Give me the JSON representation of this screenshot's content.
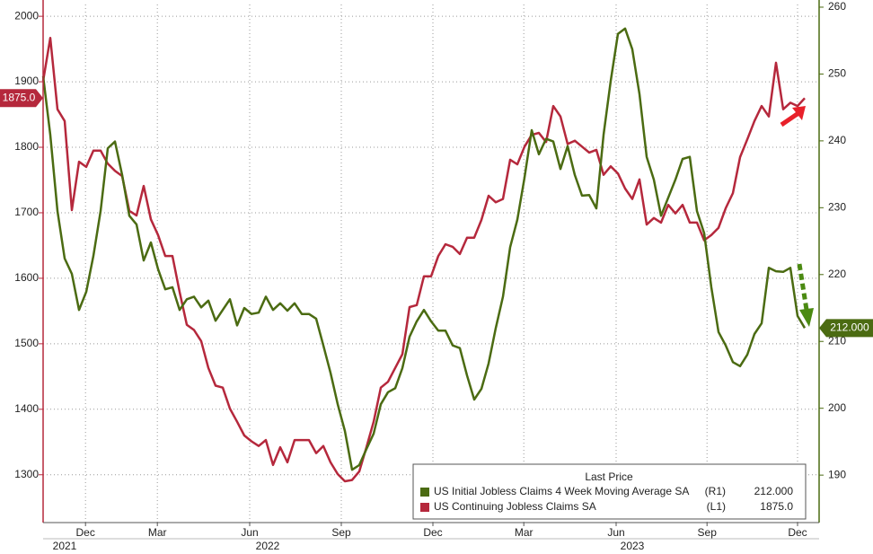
{
  "chart_data": {
    "type": "line",
    "x": [
      0,
      1,
      2,
      3,
      4,
      5,
      6,
      7,
      8,
      9,
      10,
      11,
      12,
      13,
      14,
      15,
      16,
      17,
      18,
      19,
      20,
      21,
      22,
      23,
      24,
      25,
      26,
      27,
      28,
      29,
      30,
      31,
      32,
      33,
      34,
      35,
      36,
      37,
      38,
      39,
      40,
      41,
      42,
      43,
      44,
      45,
      46,
      47,
      48,
      49,
      50,
      51,
      52,
      53,
      54,
      55,
      56,
      57,
      58,
      59,
      60,
      61,
      62,
      63,
      64,
      65,
      66,
      67,
      68,
      69,
      70,
      71,
      72,
      73,
      74,
      75,
      76,
      77,
      78,
      79,
      80,
      81,
      82,
      83,
      84,
      85,
      86,
      87,
      88,
      89,
      90,
      91,
      92,
      93,
      94,
      95,
      96,
      97,
      98,
      99,
      100,
      101,
      102,
      103,
      104,
      105,
      106
    ],
    "xlim": [
      0,
      108
    ],
    "xticks": [
      {
        "value": 5.9,
        "label": "Dec"
      },
      {
        "value": 15.9,
        "label": "Mar"
      },
      {
        "value": 28.75,
        "label": "Jun"
      },
      {
        "value": 41.5,
        "label": "Sep"
      },
      {
        "value": 54.25,
        "label": "Dec"
      },
      {
        "value": 66.9,
        "label": "Mar"
      },
      {
        "value": 79.75,
        "label": "Jun"
      },
      {
        "value": 92.4,
        "label": "Sep"
      },
      {
        "value": 105,
        "label": "Dec"
      }
    ],
    "year_ticks": [
      {
        "value": 3,
        "label": "2021"
      },
      {
        "value": 31.25,
        "label": "2022"
      },
      {
        "value": 82,
        "label": "2023"
      }
    ],
    "ylim": [
      1227,
      2018
    ],
    "yticks": [
      1300,
      1400,
      1500,
      1600,
      1700,
      1800,
      1900,
      2000
    ],
    "y2lim": [
      182.9,
      260.4
    ],
    "y2ticks": [
      190,
      200,
      210,
      220,
      230,
      240,
      250,
      260
    ],
    "grid": true,
    "legend_title": "Last Price",
    "series": [
      {
        "name": "US Initial Jobless Claims 4 Week Moving Average SA",
        "axis": "y2",
        "axis_label": "(R1)",
        "last_label": "212.000",
        "color": "#4b6b12",
        "values": [
          249.7,
          240.9,
          229.5,
          222.4,
          220.1,
          214.7,
          217.4,
          222.8,
          229.5,
          238.9,
          239.9,
          234.9,
          228.8,
          227.5,
          222.1,
          224.8,
          220.8,
          217.8,
          218.1,
          214.7,
          216.3,
          216.7,
          215.1,
          216.1,
          213.1,
          214.7,
          216.3,
          212.4,
          215.0,
          214.1,
          214.3,
          216.7,
          214.7,
          215.7,
          214.6,
          215.7,
          214.1,
          214.1,
          213.4,
          209.4,
          205.3,
          200.6,
          196.6,
          190.8,
          191.5,
          193.9,
          196.2,
          200.6,
          202.4,
          203.0,
          206.0,
          210.7,
          213.0,
          214.7,
          213.0,
          211.6,
          211.6,
          209.4,
          209.0,
          204.9,
          201.3,
          202.9,
          206.7,
          212.0,
          216.7,
          224.1,
          228.2,
          234.5,
          241.6,
          238.0,
          240.3,
          239.9,
          235.8,
          239.2,
          234.9,
          231.8,
          231.9,
          229.9,
          240.9,
          249.0,
          256.0,
          256.8,
          253.7,
          247.0,
          237.6,
          234.2,
          228.8,
          231.5,
          234.2,
          237.3,
          237.6,
          229.5,
          226.2,
          218.1,
          211.4,
          209.4,
          206.9,
          206.3,
          208.0,
          211.1,
          212.7,
          221.0,
          220.5,
          220.4,
          221.0,
          213.8,
          212
        ]
      },
      {
        "name": "US Continuing Jobless Claims SA",
        "axis": "y",
        "axis_label": "(L1)",
        "last_label": "1875.0",
        "color": "#b5283c",
        "values": [
          1901,
          1967,
          1858,
          1840,
          1704,
          1778,
          1770,
          1795,
          1795,
          1775,
          1764,
          1756,
          1703,
          1696,
          1741,
          1690,
          1666,
          1634,
          1634,
          1579,
          1529,
          1521,
          1504,
          1463,
          1436,
          1433,
          1401,
          1381,
          1360,
          1351,
          1344,
          1353,
          1315,
          1342,
          1319,
          1353,
          1353,
          1353,
          1333,
          1344,
          1319,
          1301,
          1290,
          1292,
          1305,
          1342,
          1381,
          1433,
          1442,
          1463,
          1484,
          1556,
          1559,
          1603,
          1603,
          1634,
          1652,
          1648,
          1637,
          1662,
          1662,
          1689,
          1726,
          1716,
          1721,
          1781,
          1774,
          1801,
          1819,
          1822,
          1808,
          1863,
          1847,
          1805,
          1810,
          1801,
          1792,
          1796,
          1758,
          1771,
          1760,
          1737,
          1721,
          1751,
          1682,
          1692,
          1685,
          1712,
          1699,
          1712,
          1685,
          1685,
          1658,
          1666,
          1677,
          1707,
          1730,
          1785,
          1812,
          1840,
          1863,
          1847,
          1929,
          1858,
          1868,
          1863,
          1875
        ]
      }
    ]
  }
}
